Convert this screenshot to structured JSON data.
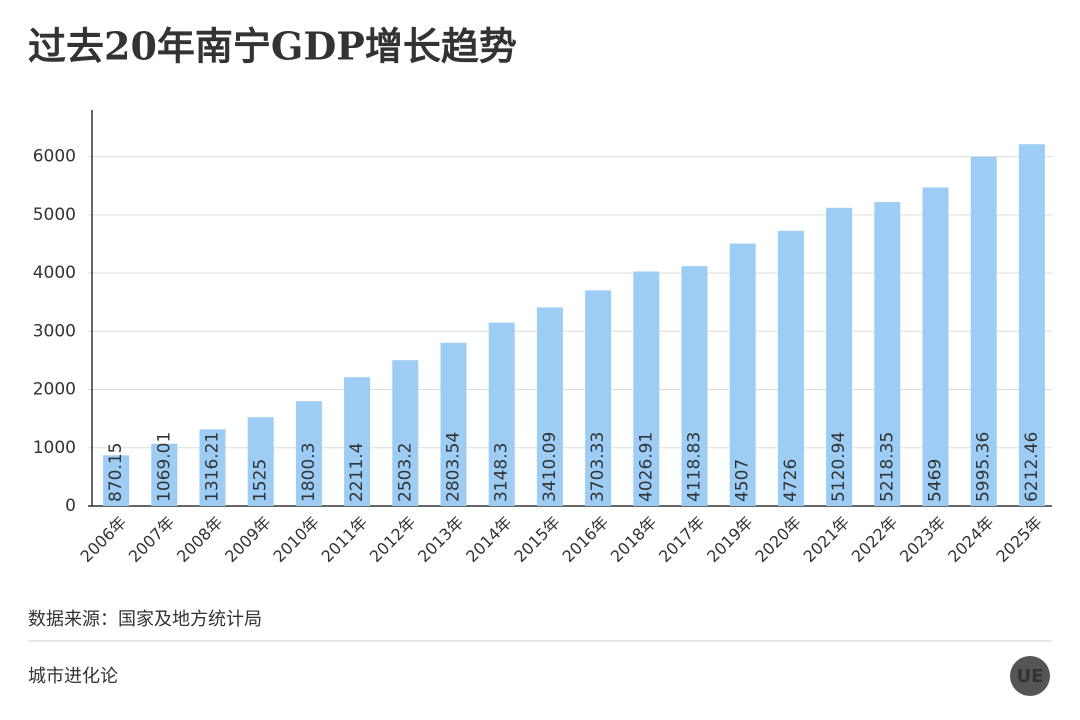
{
  "chart_data": {
    "type": "bar",
    "title": "过去20年南宁GDP增长趋势",
    "categories": [
      "2006年",
      "2007年",
      "2008年",
      "2009年",
      "2010年",
      "2011年",
      "2012年",
      "2013年",
      "2014年",
      "2015年",
      "2016年",
      "2018年",
      "2017年",
      "2019年",
      "2020年",
      "2021年",
      "2022年",
      "2023年",
      "2024年",
      "2025年"
    ],
    "values": [
      870.15,
      1069.01,
      1316.21,
      1525,
      1800.3,
      2211.4,
      2503.2,
      2803.54,
      3148.3,
      3410.09,
      3703.33,
      4026.91,
      4118.83,
      4507,
      4726,
      5120.94,
      5218.35,
      5469,
      5995.36,
      6212.46
    ],
    "color": "#9dcdf5",
    "ylim": [
      0,
      6800
    ],
    "yticks": [
      0,
      1000,
      2000,
      3000,
      4000,
      5000,
      6000
    ],
    "grid": true,
    "source": "数据来源：国家及地方统计局",
    "brand": "城市进化论",
    "logo": "UE"
  }
}
